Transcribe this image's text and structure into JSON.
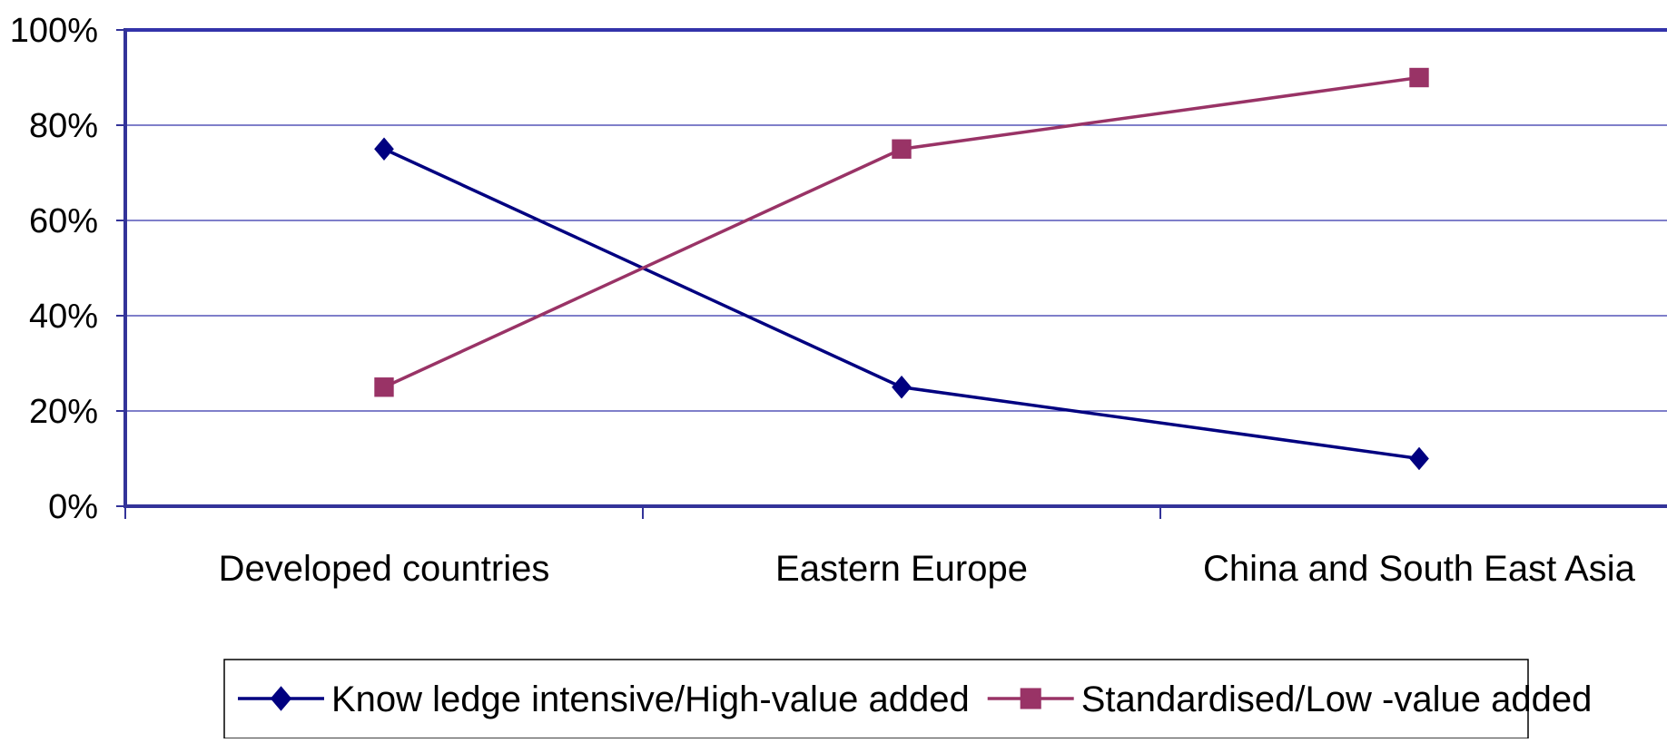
{
  "chart_data": {
    "type": "line",
    "title": "",
    "xlabel": "",
    "ylabel": "",
    "categories": [
      "Developed countries",
      "Eastern Europe",
      "China and South East Asia"
    ],
    "ylim": [
      0,
      100
    ],
    "y_ticks": [
      0,
      20,
      40,
      60,
      80,
      100
    ],
    "y_tick_labels": [
      "0%",
      "20%",
      "40%",
      "60%",
      "80%",
      "100%"
    ],
    "grid": "horizontal",
    "legend_position": "bottom",
    "series": [
      {
        "name": "Know ledge intensive/High-value added",
        "values": [
          75,
          25,
          10
        ],
        "color": "#000080",
        "marker": "diamond"
      },
      {
        "name": "Standardised/Low -value added",
        "values": [
          25,
          75,
          90
        ],
        "color": "#993366",
        "marker": "square"
      }
    ],
    "colors": {
      "axis": "#333399",
      "gridline": "#3333aa"
    }
  }
}
